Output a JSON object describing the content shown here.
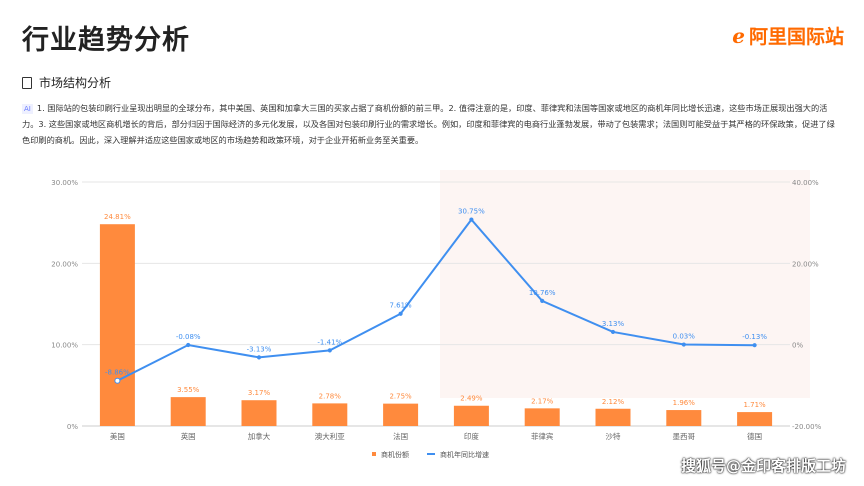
{
  "header": {
    "title": "行业趋势分析",
    "logo_text": "阿里国际站"
  },
  "section": {
    "title": "市场结构分析"
  },
  "summary": {
    "ai_badge": "AI",
    "text": "1. 国际站的包装印刷行业呈现出明显的全球分布，其中美国、英国和加拿大三国的买家占据了商机份额的前三甲。2. 值得注意的是，印度、菲律宾和法国等国家或地区的商机年同比增长迅速，这些市场正展现出强大的活力。3. 这些国家或地区商机增长的背后，部分归因于国际经济的多元化发展，以及各国对包装印刷行业的需求增长。例如，印度和菲律宾的电商行业蓬勃发展，带动了包装需求；法国则可能受益于其严格的环保政策，促进了绿色印刷的商机。因此，深入理解并适应这些国家或地区的市场趋势和政策环境，对于企业开拓新业务至关重要。"
  },
  "footer": {
    "watermark": "搜狐号@金印客排版工坊"
  },
  "chart_data": {
    "type": "bar+line",
    "categories": [
      "美国",
      "英国",
      "加拿大",
      "澳大利亚",
      "法国",
      "印度",
      "菲律宾",
      "沙特",
      "墨西哥",
      "德国"
    ],
    "series": [
      {
        "name": "商机份额",
        "type": "bar",
        "axis": "left",
        "color": "#ff8a3d",
        "values": [
          24.81,
          3.55,
          3.17,
          2.78,
          2.75,
          2.49,
          2.17,
          2.12,
          1.96,
          1.71
        ],
        "labels": [
          "24.81%",
          "3.55%",
          "3.17%",
          "2.78%",
          "2.75%",
          "2.49%",
          "2.17%",
          "2.12%",
          "1.96%",
          "1.71%"
        ]
      },
      {
        "name": "商机年同比增速",
        "type": "line",
        "axis": "right",
        "color": "#3f8ff0",
        "values": [
          -8.86,
          -0.08,
          -3.13,
          -1.41,
          7.61,
          30.75,
          10.76,
          3.13,
          0.03,
          -0.13
        ],
        "labels": [
          "-8.86%",
          "-0.08%",
          "-3.13%",
          "-1.41%",
          "7.61%",
          "30.75%",
          "10.76%",
          "3.13%",
          "0.03%",
          "-0.13%"
        ]
      }
    ],
    "left_axis": {
      "ylim": [
        0,
        30
      ],
      "ticks": [
        "0%",
        "10.00%",
        "20.00%",
        "30.00%"
      ]
    },
    "right_axis": {
      "ylim": [
        -20,
        40
      ],
      "ticks": [
        "-20.00%",
        "0%",
        "20.00%",
        "40.00%"
      ]
    },
    "grid": true,
    "legend": "bottom"
  }
}
